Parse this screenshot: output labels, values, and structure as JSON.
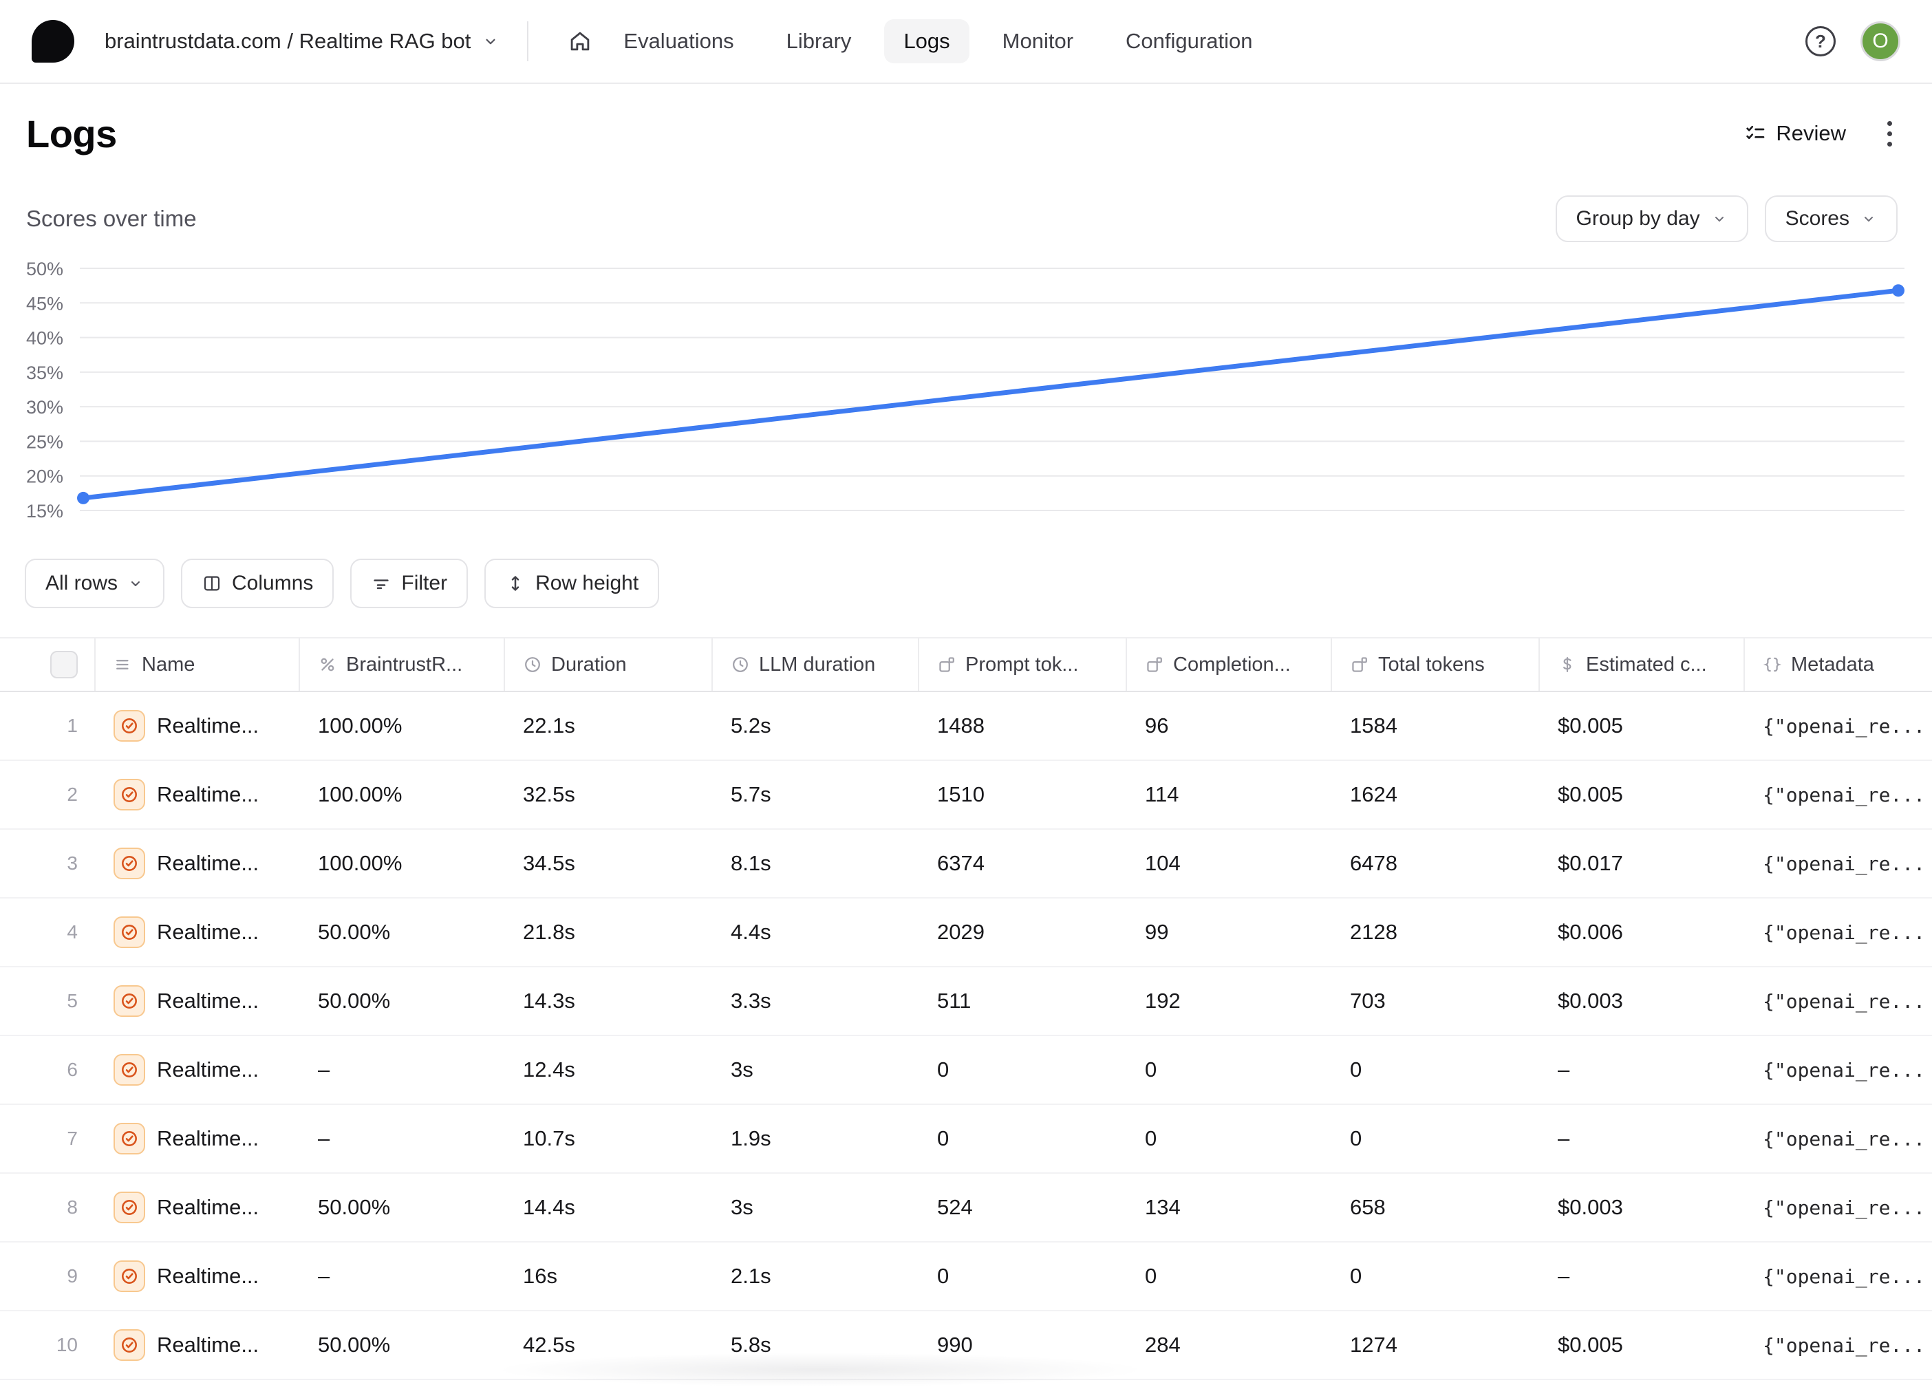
{
  "nav": {
    "breadcrumb": "braintrustdata.com / Realtime RAG bot",
    "items": [
      {
        "label": "Evaluations",
        "active": false
      },
      {
        "label": "Library",
        "active": false
      },
      {
        "label": "Logs",
        "active": true
      },
      {
        "label": "Monitor",
        "active": false
      },
      {
        "label": "Configuration",
        "active": false
      }
    ],
    "avatar_initial": "O"
  },
  "page": {
    "title": "Logs",
    "review_label": "Review"
  },
  "scores_section": {
    "title": "Scores over time",
    "group_by_label": "Group by day",
    "metric_label": "Scores"
  },
  "chart_data": {
    "type": "line",
    "title": "Scores over time",
    "series": [
      {
        "name": "Scores",
        "values": [
          16.8,
          46.8
        ]
      }
    ],
    "x": [
      "start",
      "end"
    ],
    "yticks": [
      50,
      45,
      40,
      35,
      30,
      25,
      20,
      15
    ],
    "ytick_suffix": "%",
    "ylim": [
      13,
      52
    ],
    "grid": true,
    "legend": "none",
    "line_color": "#3e7bf1",
    "grid_color": "#e9e9eb",
    "tick_color": "#71717a"
  },
  "toolbar": {
    "all_rows_label": "All rows",
    "columns_label": "Columns",
    "filter_label": "Filter",
    "row_height_label": "Row height"
  },
  "table": {
    "columns": [
      {
        "label": "Name",
        "icon": "menu"
      },
      {
        "label": "BraintrustR...",
        "icon": "percent"
      },
      {
        "label": "Duration",
        "icon": "clock"
      },
      {
        "label": "LLM duration",
        "icon": "clock"
      },
      {
        "label": "Prompt tok...",
        "icon": "tokens"
      },
      {
        "label": "Completion...",
        "icon": "tokens"
      },
      {
        "label": "Total tokens",
        "icon": "tokens"
      },
      {
        "label": "Estimated c...",
        "icon": "dollar"
      },
      {
        "label": "Metadata",
        "icon": "braces"
      }
    ],
    "rows": [
      {
        "num": "1",
        "name": "Realtime...",
        "score": "100.00%",
        "duration": "22.1s",
        "llm_duration": "5.2s",
        "prompt_tokens": "1488",
        "completion_tokens": "96",
        "total_tokens": "1584",
        "estimated_cost": "$0.005",
        "metadata": "{\"openai_re..."
      },
      {
        "num": "2",
        "name": "Realtime...",
        "score": "100.00%",
        "duration": "32.5s",
        "llm_duration": "5.7s",
        "prompt_tokens": "1510",
        "completion_tokens": "114",
        "total_tokens": "1624",
        "estimated_cost": "$0.005",
        "metadata": "{\"openai_re..."
      },
      {
        "num": "3",
        "name": "Realtime...",
        "score": "100.00%",
        "duration": "34.5s",
        "llm_duration": "8.1s",
        "prompt_tokens": "6374",
        "completion_tokens": "104",
        "total_tokens": "6478",
        "estimated_cost": "$0.017",
        "metadata": "{\"openai_re..."
      },
      {
        "num": "4",
        "name": "Realtime...",
        "score": "50.00%",
        "duration": "21.8s",
        "llm_duration": "4.4s",
        "prompt_tokens": "2029",
        "completion_tokens": "99",
        "total_tokens": "2128",
        "estimated_cost": "$0.006",
        "metadata": "{\"openai_re..."
      },
      {
        "num": "5",
        "name": "Realtime...",
        "score": "50.00%",
        "duration": "14.3s",
        "llm_duration": "3.3s",
        "prompt_tokens": "511",
        "completion_tokens": "192",
        "total_tokens": "703",
        "estimated_cost": "$0.003",
        "metadata": "{\"openai_re..."
      },
      {
        "num": "6",
        "name": "Realtime...",
        "score": "–",
        "duration": "12.4s",
        "llm_duration": "3s",
        "prompt_tokens": "0",
        "completion_tokens": "0",
        "total_tokens": "0",
        "estimated_cost": "–",
        "metadata": "{\"openai_re..."
      },
      {
        "num": "7",
        "name": "Realtime...",
        "score": "–",
        "duration": "10.7s",
        "llm_duration": "1.9s",
        "prompt_tokens": "0",
        "completion_tokens": "0",
        "total_tokens": "0",
        "estimated_cost": "–",
        "metadata": "{\"openai_re..."
      },
      {
        "num": "8",
        "name": "Realtime...",
        "score": "50.00%",
        "duration": "14.4s",
        "llm_duration": "3s",
        "prompt_tokens": "524",
        "completion_tokens": "134",
        "total_tokens": "658",
        "estimated_cost": "$0.003",
        "metadata": "{\"openai_re..."
      },
      {
        "num": "9",
        "name": "Realtime...",
        "score": "–",
        "duration": "16s",
        "llm_duration": "2.1s",
        "prompt_tokens": "0",
        "completion_tokens": "0",
        "total_tokens": "0",
        "estimated_cost": "–",
        "metadata": "{\"openai_re..."
      },
      {
        "num": "10",
        "name": "Realtime...",
        "score": "50.00%",
        "duration": "42.5s",
        "llm_duration": "5.8s",
        "prompt_tokens": "990",
        "completion_tokens": "284",
        "total_tokens": "1274",
        "estimated_cost": "$0.005",
        "metadata": "{\"openai_re..."
      }
    ]
  }
}
